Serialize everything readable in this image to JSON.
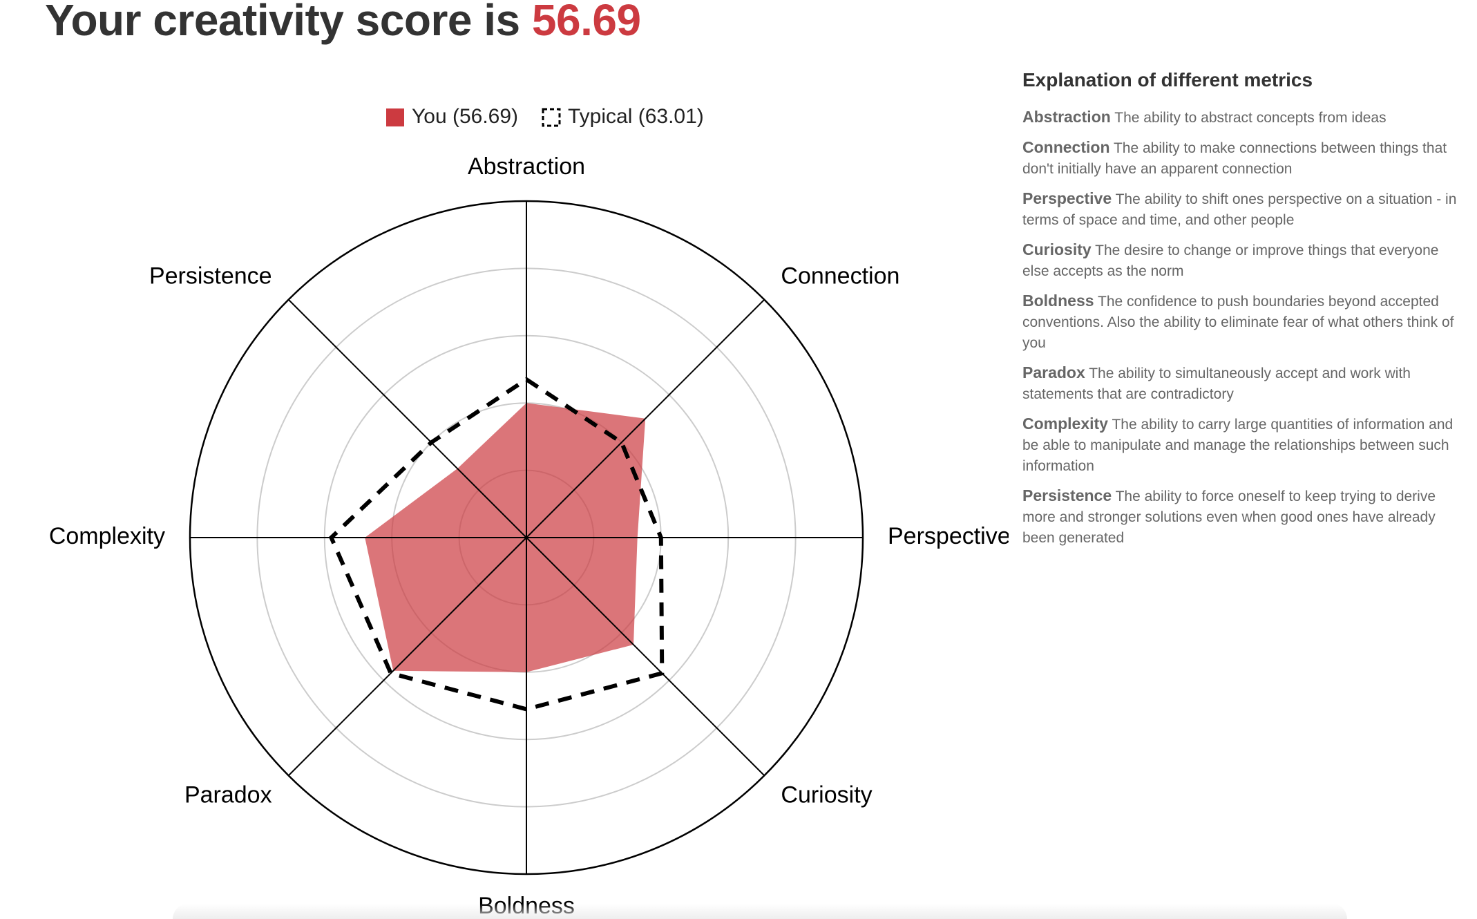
{
  "header": {
    "title_prefix": "Your creativity score is",
    "score": "56.69"
  },
  "explanations": {
    "heading": "Explanation of different metrics",
    "items": [
      {
        "name": "Abstraction",
        "text": "The ability to abstract concepts from ideas"
      },
      {
        "name": "Connection",
        "text": "The ability to make connections between things that don't initially have an apparent connection"
      },
      {
        "name": "Perspective",
        "text": "The ability to shift ones perspective on a situation - in terms of space and time, and other people"
      },
      {
        "name": "Curiosity",
        "text": "The desire to change or improve things that everyone else accepts as the norm"
      },
      {
        "name": "Boldness",
        "text": "The confidence to push boundaries beyond accepted conventions. Also the ability to eliminate fear of what others think of you"
      },
      {
        "name": "Paradox",
        "text": "The ability to simultaneously accept and work with statements that are contradictory"
      },
      {
        "name": "Complexity",
        "text": "The ability to carry large quantities of information and be able to manipulate and manage the relationships between such information"
      },
      {
        "name": "Persistence",
        "text": "The ability to force oneself to keep trying to derive more and stronger solutions even when good ones have already been generated"
      }
    ]
  },
  "chart_data": {
    "type": "radar",
    "title": "",
    "categories": [
      "Abstraction",
      "Connection",
      "Perspective",
      "Curiosity",
      "Boldness",
      "Paradox",
      "Complexity",
      "Persistence"
    ],
    "rlim": [
      0,
      100
    ],
    "rings": 5,
    "grid": true,
    "legend_position": "top",
    "series": [
      {
        "name": "You (56.69)",
        "values": [
          40,
          50,
          33,
          45,
          40,
          56,
          48,
          29
        ],
        "style": "filled",
        "color": "#cc3a40"
      },
      {
        "name": "Typical (63.01)",
        "values": [
          47,
          40,
          40,
          57,
          51,
          57,
          58,
          40
        ],
        "style": "dashed",
        "color": "#000000"
      }
    ]
  },
  "colors": {
    "accent": "#cc3a40",
    "text": "#333333",
    "muted": "#666666",
    "grid": "#cccccc"
  }
}
